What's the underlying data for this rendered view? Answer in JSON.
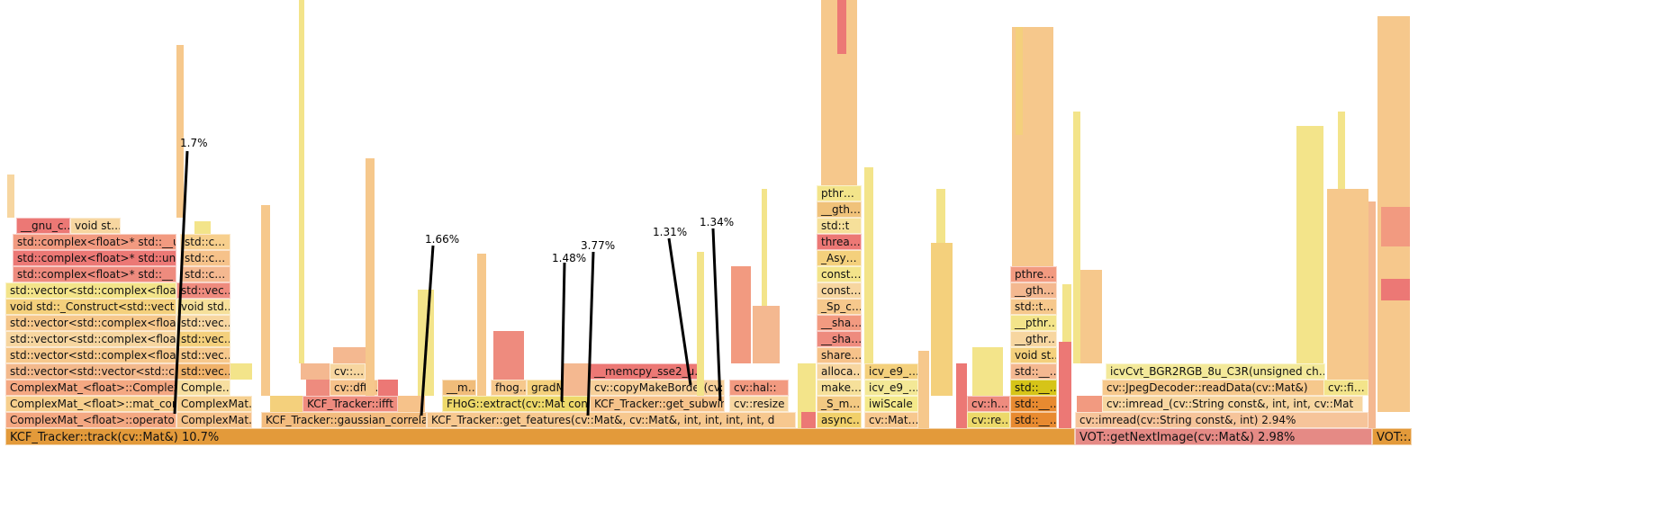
{
  "base": [
    {
      "label": "KCF_Tracker::track(cv::Mat&)  10.7%",
      "color": "#e39a3a"
    },
    {
      "label": "VOT::getNextImage(cv::Mat&)  2.98%",
      "color": "#e58a85"
    },
    {
      "label": "VOT::…",
      "color": "#e39a3a"
    }
  ],
  "rows": {
    "r1": [
      "ComplexMat_<float>::operator*(",
      "ComplexMat…",
      "KCF_Tracker::gaussian_correla",
      "KCF_Tracker::get_features(cv::Mat&, cv::Mat&, int, int, int, int, d",
      "async…",
      "cv::Mat…",
      "cv::re…",
      "std::__…",
      "cv::imread(cv::String const&, int)  2.94%"
    ],
    "r2": [
      "ComplexMat_<float>::mat_const",
      "ComplexMat…",
      "KCF_Tracker::ifft",
      "FHoG::extract(cv::Mat const",
      "KCF_Tracker::get_subwin",
      "cv::resize",
      "_S_m…",
      "iwiScale",
      "cv::h…",
      "std::__…",
      "cv::imread_(cv::String const&, int, int, cv::Mat",
      "cv::JpegDecoder::readData(cv::Mat&)",
      "cv::fi…"
    ],
    "r3": [
      "ComplexMat_<float>::ComplexM",
      "Comple…",
      "cv::dft…",
      "__m…",
      "fhog…",
      "gradM…",
      "cv::copyMakeBorder(cv::…",
      "cv::hal::",
      "make…",
      "icv_e9_…",
      "std::__…",
      "cv::JpegDecoder::readData(cv::Mat&)",
      "icvCvt_BGR2RGB_8u_C3R(unsigned ch…"
    ],
    "r4": [
      "std::vector<std::vector<std::c",
      "std::vec…",
      "cv::…",
      "__memcpy_sse2_u…",
      "alloca…",
      "icv_e9_…",
      "std::__…"
    ],
    "stack": [
      "std::vector<std::complex<float",
      "std::vector<std::complex<float",
      "std::vector<std::complex<float",
      "void std::_Construct<std::vect",
      "std::vector<std::complex<float",
      "std::complex<float>* std::__",
      "std::complex<float>* std::un",
      "std::complex<float>* std::__u",
      "__gnu_c…",
      "void st…"
    ],
    "stack2": [
      "std::vec…",
      "std::vec…",
      "std::vec…",
      "void std…",
      "std::vec…",
      "std::c…",
      "std::c…",
      "std::c…"
    ],
    "col_async": [
      "share…",
      "__sha…",
      "__sha…",
      "_Sp_c…",
      "const…",
      "const…",
      "_Asy…",
      "threa…",
      "std::t",
      "__gth…",
      "pthr…"
    ],
    "col_std": [
      "void st…",
      "__gthr…",
      "__pthr…",
      "std::t…",
      "__gth…",
      "pthre…"
    ]
  },
  "annotations": [
    "1.7%",
    "1.66%",
    "1.48%",
    "3.77%",
    "1.31%",
    "1.34%"
  ]
}
